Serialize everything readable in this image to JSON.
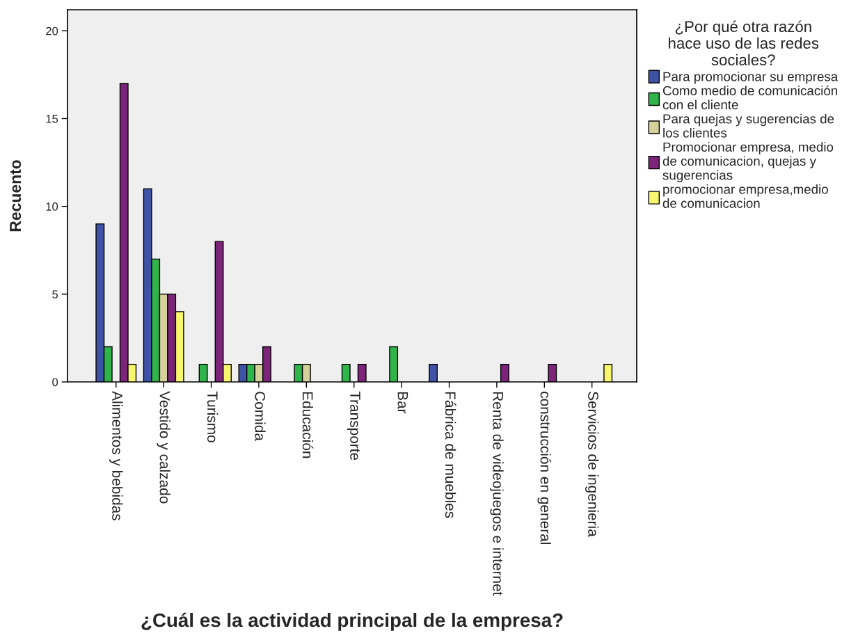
{
  "chart_data": {
    "type": "bar",
    "xlabel": "¿Cuál es la actividad principal de la empresa?",
    "ylabel": "Recuento",
    "legend_title": "¿Por qué otra razón hace uso de las redes sociales?",
    "categories": [
      "Alimentos y bebidas",
      "Vestido y calzado",
      "Turismo",
      "Comida",
      "Educación",
      "Transporte",
      "Bar",
      "Fábrica de muebles",
      "Renta de videojuegos e internet",
      "construcción en general",
      "Servicios de ingenieria"
    ],
    "series": [
      {
        "name": "Para promocionar su empresa",
        "color": "#3e52a6",
        "values": [
          9,
          11,
          0,
          1,
          0,
          0,
          0,
          1,
          0,
          0,
          0
        ]
      },
      {
        "name": "Como medio de comunicación con el cliente",
        "color": "#2fb54a",
        "values": [
          2,
          7,
          1,
          1,
          1,
          1,
          2,
          0,
          0,
          0,
          0
        ]
      },
      {
        "name": "Para quejas y sugerencias de los clientes",
        "color": "#d5d19a",
        "values": [
          0,
          5,
          0,
          1,
          1,
          0,
          0,
          0,
          0,
          0,
          0
        ]
      },
      {
        "name": "Promocionar empresa, medio de comunicacion, quejas y sugerencias",
        "color": "#7b247a",
        "values": [
          17,
          5,
          8,
          2,
          0,
          1,
          0,
          0,
          1,
          1,
          0
        ]
      },
      {
        "name": "promocionar empresa,medio de comunicacion",
        "color": "#f8f56e",
        "values": [
          1,
          4,
          1,
          0,
          0,
          0,
          0,
          0,
          0,
          0,
          1
        ]
      }
    ],
    "ylim": [
      0,
      21.2
    ],
    "yticks": [
      0,
      5,
      10,
      15,
      20
    ],
    "legend": "right"
  }
}
